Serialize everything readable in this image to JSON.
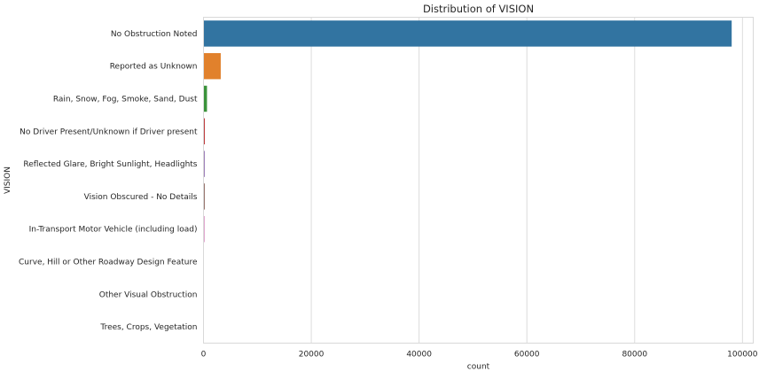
{
  "chart_data": {
    "type": "bar",
    "orientation": "horizontal",
    "title": "Distribution of VISION",
    "xlabel": "count",
    "ylabel": "VISION",
    "xlim": [
      0,
      102000
    ],
    "xticks": [
      0,
      20000,
      40000,
      60000,
      80000,
      100000
    ],
    "grid": true,
    "categories": [
      "No Obstruction Noted",
      "Reported as Unknown",
      "Rain, Snow, Fog, Smoke, Sand, Dust",
      "No Driver Present/Unknown if Driver present",
      "Reflected Glare, Bright Sunlight, Headlights",
      "Vision Obscured - No Details",
      "In-Transport Motor Vehicle (including load)",
      "Curve, Hill or Other Roadway Design Feature",
      "Other Visual Obstruction",
      "Trees, Crops, Vegetation"
    ],
    "values": [
      98000,
      3200,
      650,
      250,
      230,
      220,
      200,
      60,
      40,
      20
    ],
    "colors": [
      "#3274a1",
      "#e1812c",
      "#3a923a",
      "#c03d3e",
      "#9372b2",
      "#845b53",
      "#d684bd",
      "#7f7f7f",
      "#a9aa35",
      "#2ebdcf"
    ]
  }
}
